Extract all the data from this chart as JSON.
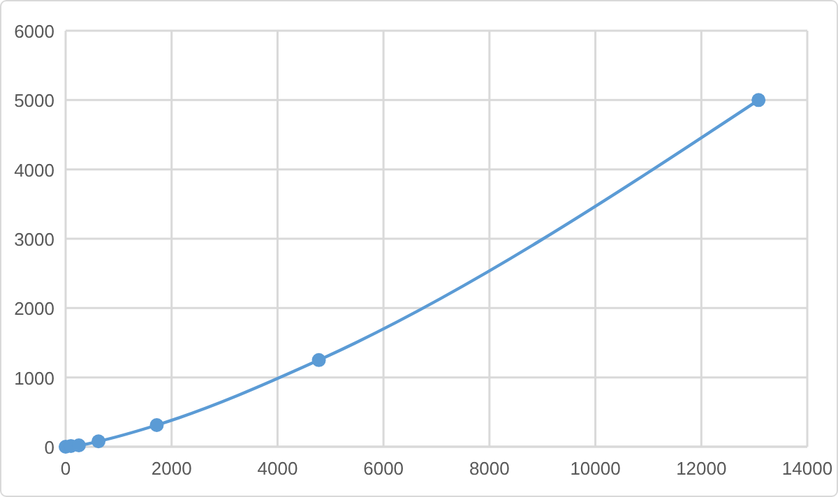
{
  "chart_data": {
    "type": "line",
    "x": [
      0,
      100,
      250,
      620,
      1720,
      4780,
      13080
    ],
    "series": [
      {
        "color": "#5b9bd5",
        "values": [
          0,
          10,
          20,
          78,
          312,
          1250,
          5000
        ]
      }
    ],
    "xlim": [
      0,
      14000
    ],
    "xticks": [
      0,
      2000,
      4000,
      6000,
      8000,
      10000,
      12000,
      14000
    ],
    "ylim": [
      0,
      6000
    ],
    "yticks": [
      0,
      1000,
      2000,
      3000,
      4000,
      5000,
      6000
    ],
    "grid": true,
    "marker": "circle",
    "line_style": "solid"
  }
}
